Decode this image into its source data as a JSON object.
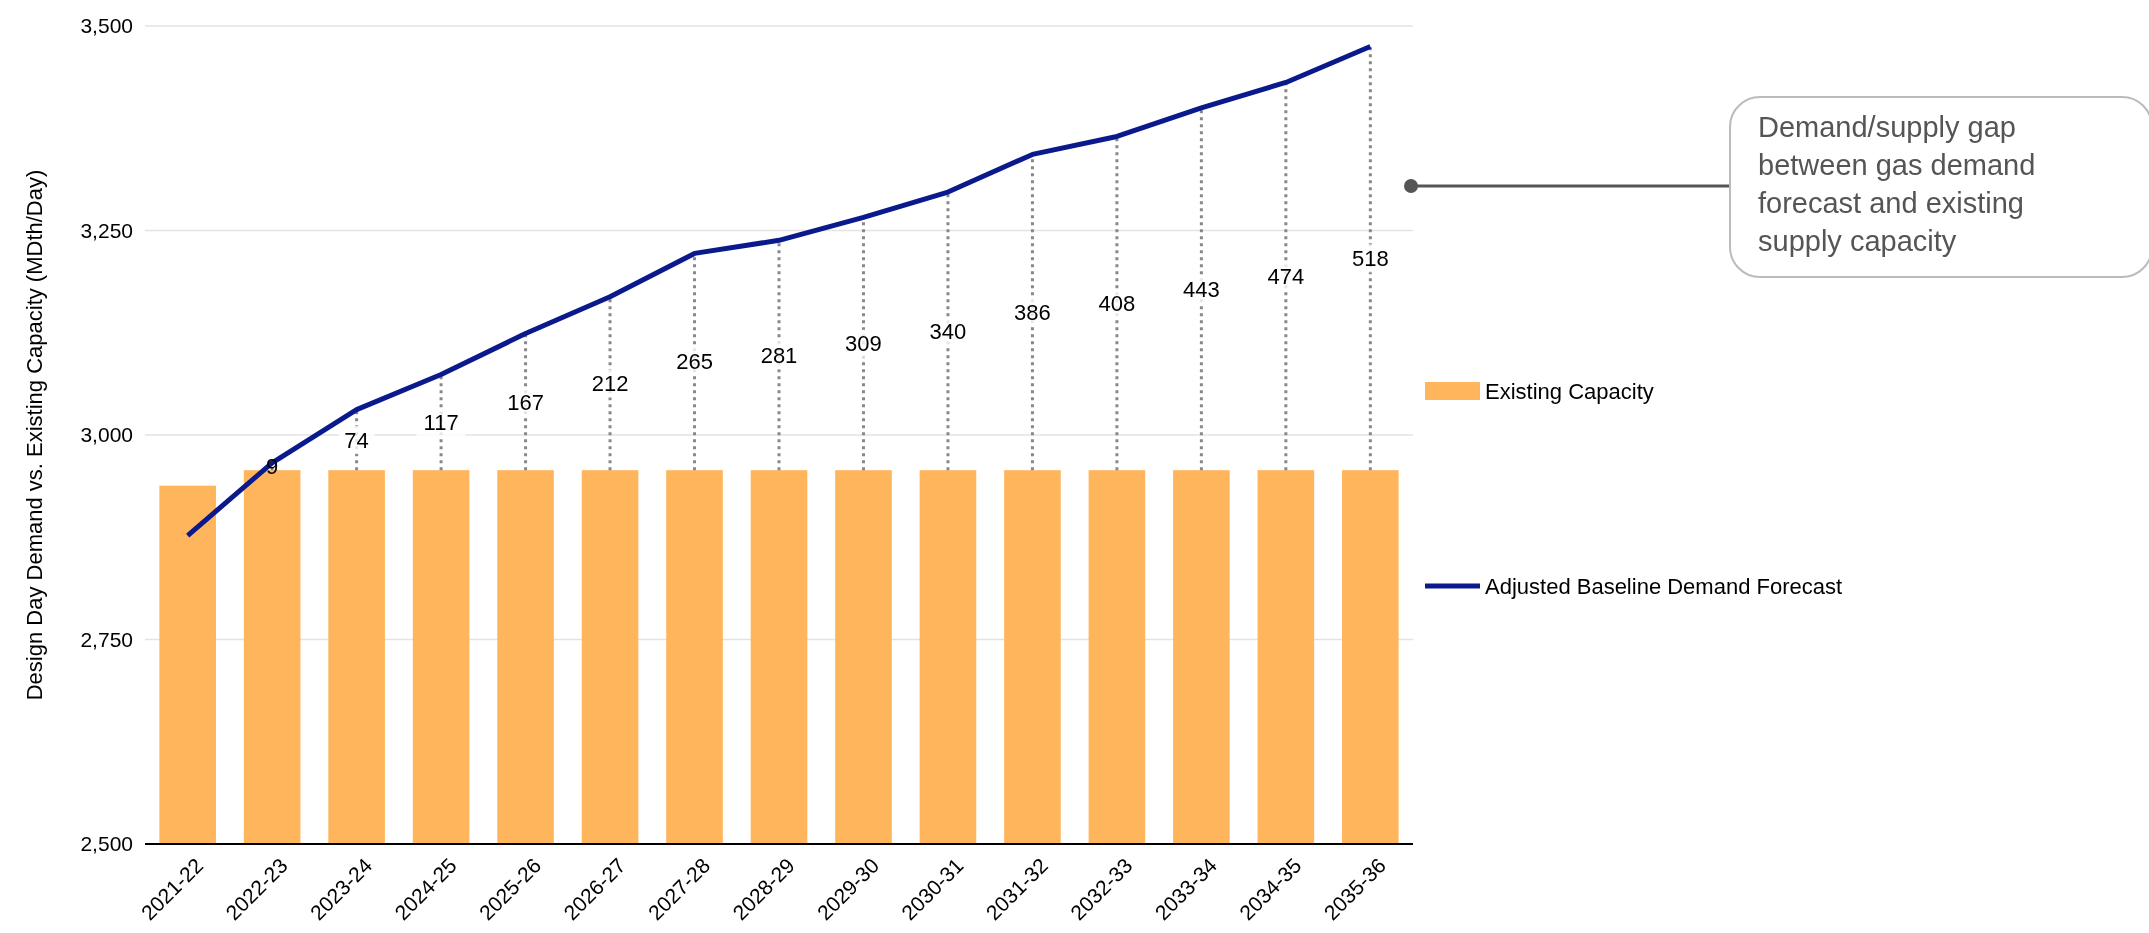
{
  "chart_data": {
    "type": "bar",
    "ylabel": "Design Day Demand vs. Existing Capacity (MDth/Day)",
    "categories": [
      "2021-22",
      "2022-23",
      "2023-24",
      "2024-25",
      "2025-26",
      "2026-27",
      "2027-28",
      "2028-29",
      "2029-30",
      "2030-31",
      "2031-32",
      "2032-33",
      "2033-34",
      "2034-35",
      "2035-36"
    ],
    "series": [
      {
        "name": "Existing Capacity",
        "color": "#ffb55c",
        "values": [
          2938,
          2957,
          2957,
          2957,
          2957,
          2957,
          2957,
          2957,
          2957,
          2957,
          2957,
          2957,
          2957,
          2957,
          2957
        ]
      },
      {
        "name": "Adjusted Baseline Demand Forecast",
        "type": "line",
        "color": "#0a1a8c",
        "values": [
          2877,
          2966,
          3031,
          3074,
          3124,
          3169,
          3222,
          3238,
          3266,
          3297,
          3343,
          3365,
          3400,
          3431,
          3475
        ],
        "errors": [
          null,
          [
            2957,
            2966
          ],
          [
            2957,
            3031
          ],
          [
            2957,
            3074
          ],
          [
            2957,
            3124
          ],
          [
            2957,
            3169
          ],
          [
            2957,
            3222
          ],
          [
            2957,
            3238
          ],
          [
            2957,
            3266
          ],
          [
            2957,
            3297
          ],
          [
            2957,
            3343
          ],
          [
            2957,
            3365
          ],
          [
            2957,
            3400
          ],
          [
            2957,
            3431
          ],
          [
            2957,
            3475
          ]
        ]
      }
    ],
    "ylim": [
      2500,
      3500
    ],
    "yticks": [
      {
        "value": 2500,
        "label": "2,500"
      },
      {
        "value": 2750,
        "label": "2,750"
      },
      {
        "value": 3000,
        "label": "3,000"
      },
      {
        "value": 3250,
        "label": "3,250"
      },
      {
        "value": 3500,
        "label": "3,500"
      }
    ],
    "grid": "y",
    "legend": "right",
    "marker": "none",
    "line_style": "solid",
    "annotations": [
      "9",
      "74",
      "117",
      "167",
      "212",
      "265",
      "281",
      "309",
      "340",
      "386",
      "408",
      "443",
      "474",
      "518",
      "Demand/supply gap between gas demand forecast and existing supply capacity"
    ]
  }
}
